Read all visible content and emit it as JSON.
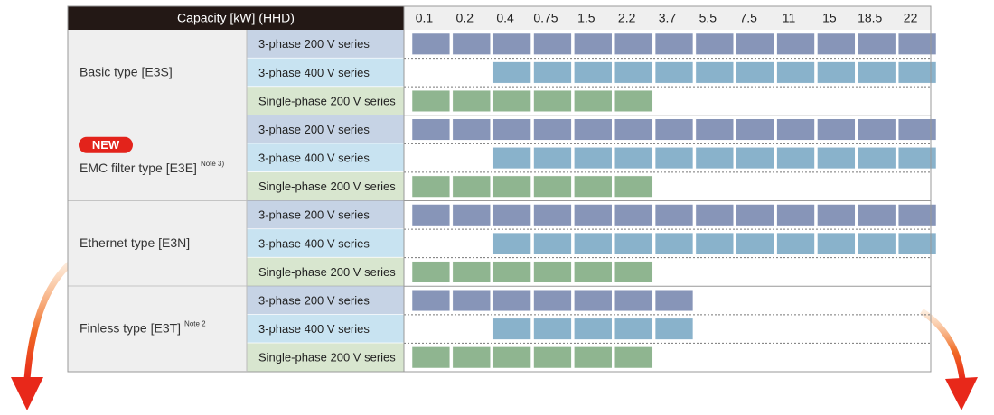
{
  "header": {
    "title": "Capacity [kW] (HHD)",
    "capacities": [
      "0.1",
      "0.2",
      "0.4",
      "0.75",
      "1.5",
      "2.2",
      "3.7",
      "5.5",
      "7.5",
      "11",
      "15",
      "18.5",
      "22"
    ]
  },
  "groups": [
    {
      "name": "Basic type [E3S]",
      "rows": [
        {
          "series": "3-phase 200 V series",
          "available": [
            true,
            true,
            true,
            true,
            true,
            true,
            true,
            true,
            true,
            true,
            true,
            true,
            true
          ]
        },
        {
          "series": "3-phase 400 V series",
          "available": [
            false,
            false,
            true,
            true,
            true,
            true,
            true,
            true,
            true,
            true,
            true,
            true,
            true
          ]
        },
        {
          "series": "Single-phase 200 V series",
          "available": [
            true,
            true,
            true,
            true,
            true,
            true,
            false,
            false,
            false,
            false,
            false,
            false,
            false
          ]
        }
      ]
    },
    {
      "badge": "NEW",
      "name": "EMC filter type [E3E]",
      "note": "Note 3)",
      "rows": [
        {
          "series": "3-phase 200 V series",
          "available": [
            true,
            true,
            true,
            true,
            true,
            true,
            true,
            true,
            true,
            true,
            true,
            true,
            true
          ]
        },
        {
          "series": "3-phase 400 V series",
          "available": [
            false,
            false,
            true,
            true,
            true,
            true,
            true,
            true,
            true,
            true,
            true,
            true,
            true
          ]
        },
        {
          "series": "Single-phase 200 V series",
          "available": [
            true,
            true,
            true,
            true,
            true,
            true,
            false,
            false,
            false,
            false,
            false,
            false,
            false
          ]
        }
      ]
    },
    {
      "name": "Ethernet type [E3N]",
      "rows": [
        {
          "series": "3-phase 200 V series",
          "available": [
            true,
            true,
            true,
            true,
            true,
            true,
            true,
            true,
            true,
            true,
            true,
            true,
            true
          ]
        },
        {
          "series": "3-phase 400 V series",
          "available": [
            false,
            false,
            true,
            true,
            true,
            true,
            true,
            true,
            true,
            true,
            true,
            true,
            true
          ]
        },
        {
          "series": "Single-phase 200 V series",
          "available": [
            true,
            true,
            true,
            true,
            true,
            true,
            false,
            false,
            false,
            false,
            false,
            false,
            false
          ]
        }
      ]
    },
    {
      "name": "Finless type [E3T]",
      "note": "Note 2",
      "rows": [
        {
          "series": "3-phase 200 V series",
          "available": [
            true,
            true,
            true,
            true,
            true,
            true,
            true,
            false,
            false,
            false,
            false,
            false,
            false
          ]
        },
        {
          "series": "3-phase 400 V series",
          "available": [
            false,
            false,
            true,
            true,
            true,
            true,
            true,
            false,
            false,
            false,
            false,
            false,
            false
          ]
        },
        {
          "series": "Single-phase 200 V series",
          "available": [
            true,
            true,
            true,
            true,
            true,
            true,
            false,
            false,
            false,
            false,
            false,
            false,
            false
          ]
        }
      ]
    }
  ]
}
